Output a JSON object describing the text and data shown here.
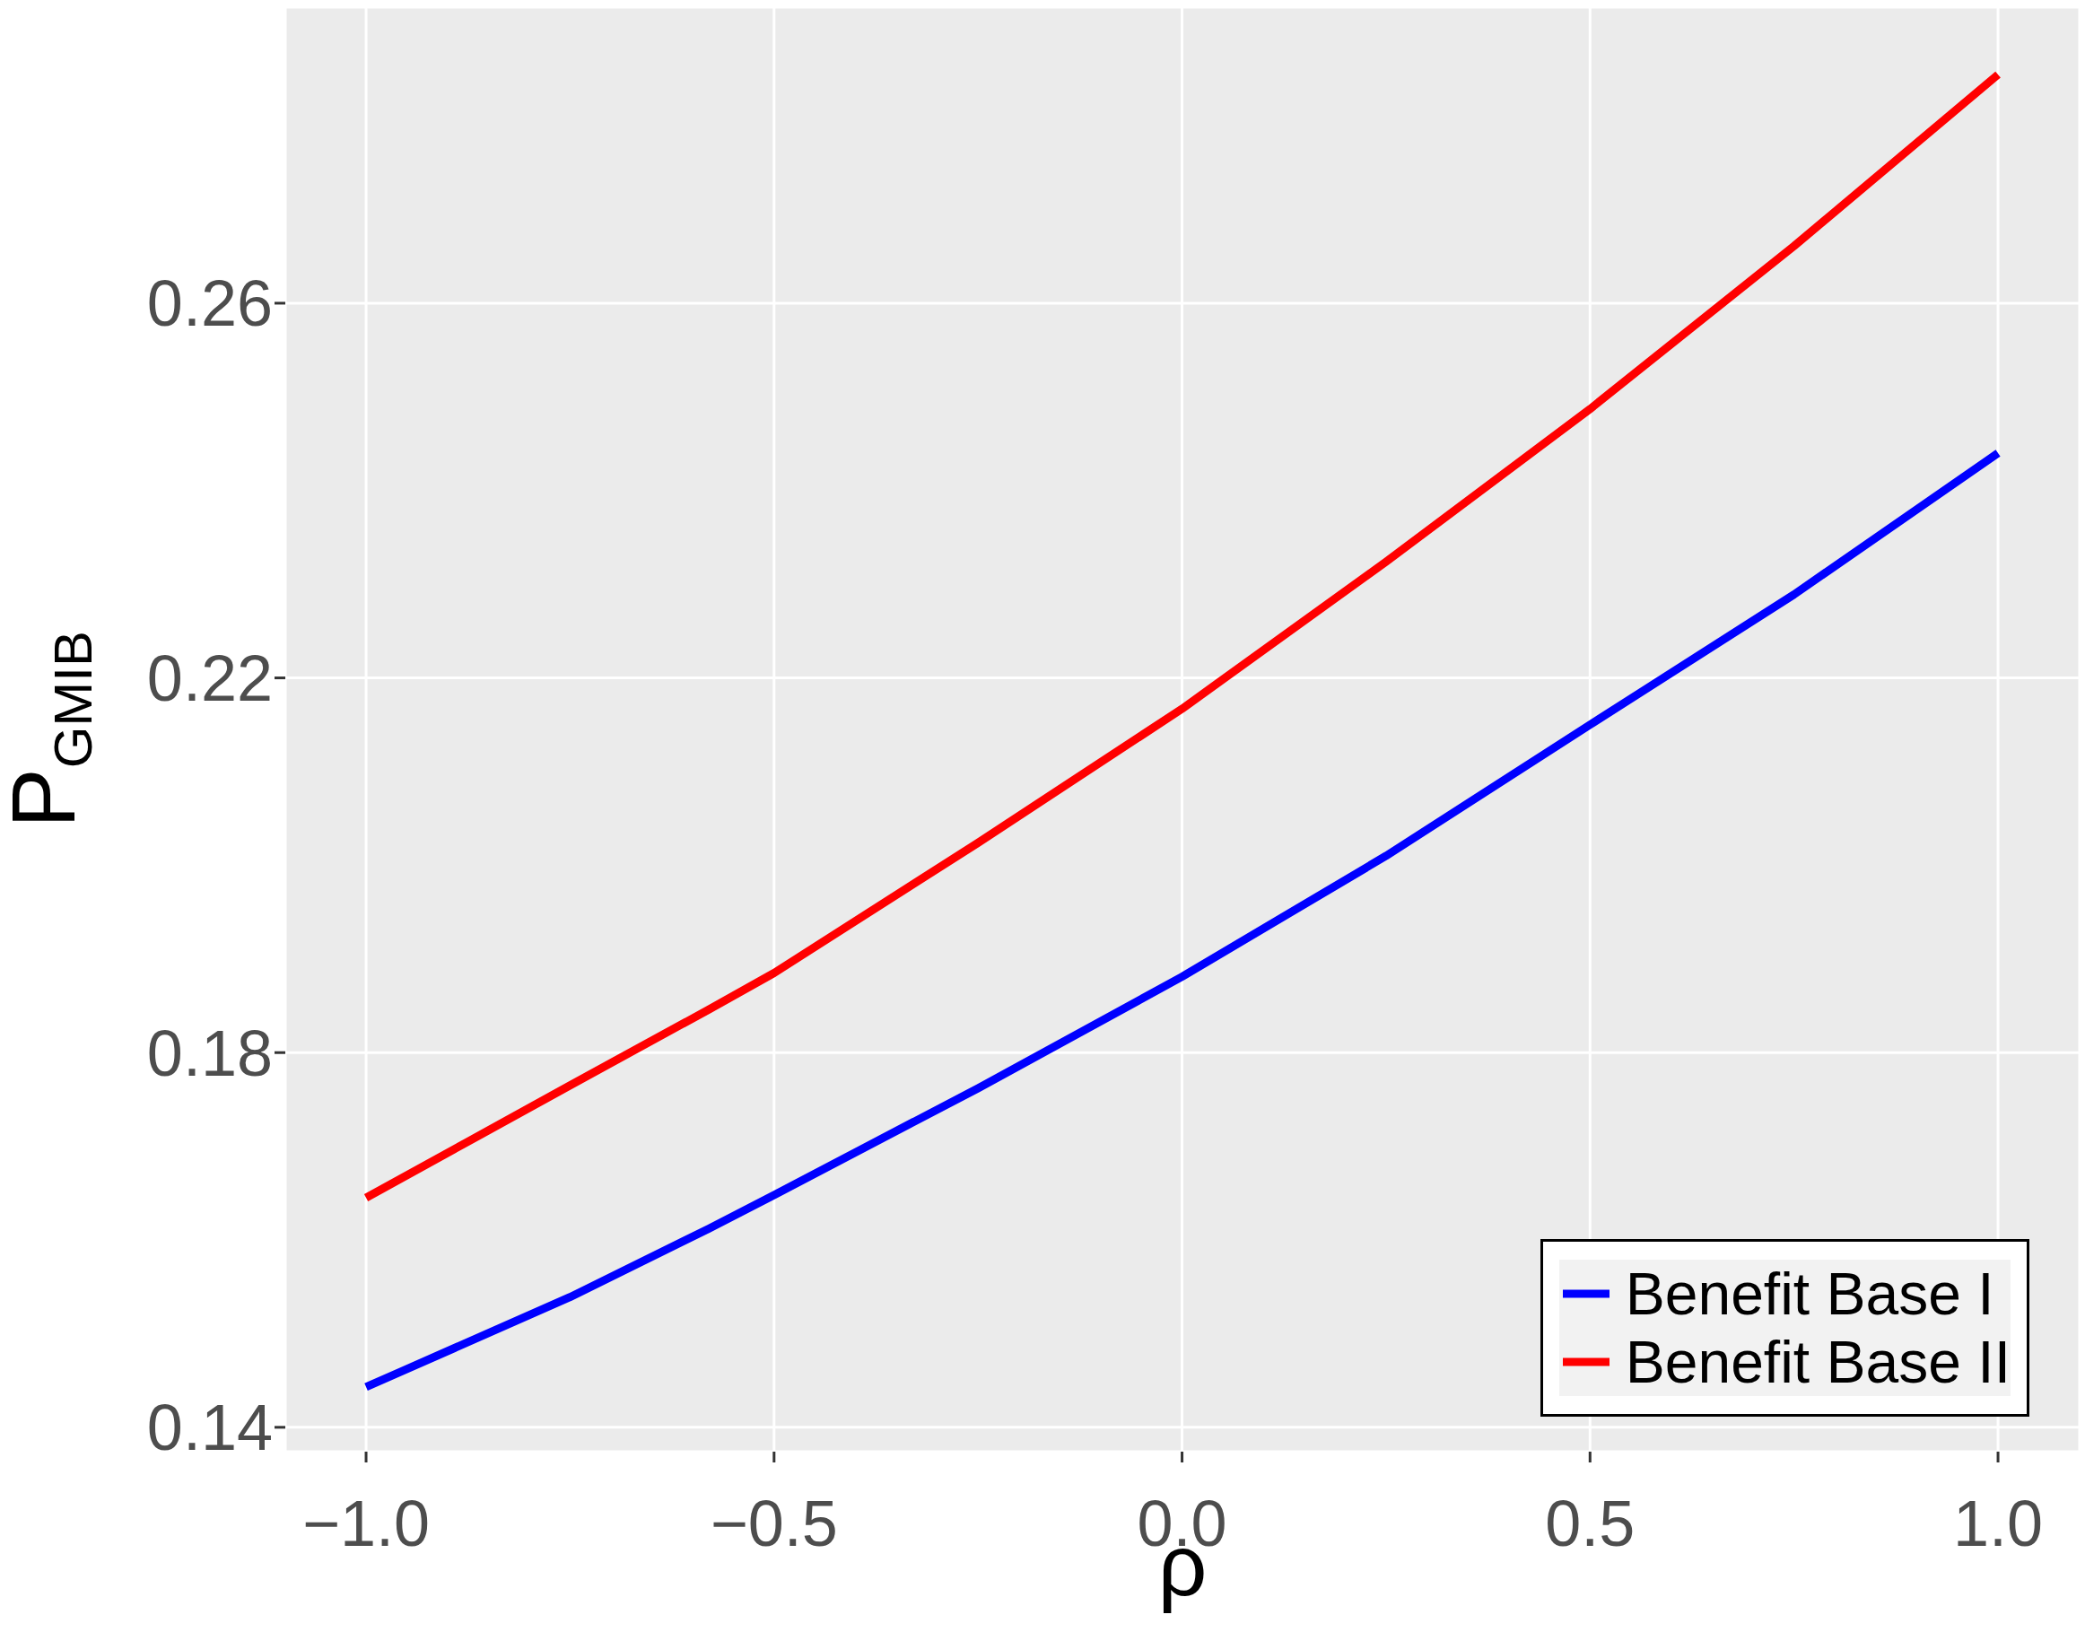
{
  "chart_data": {
    "type": "line",
    "xlabel": "ρ",
    "ylabel": "P$_{GMIB}$",
    "x": [
      -1,
      -0.75,
      -0.58,
      -0.5,
      -0.25,
      0,
      0.25,
      0.5,
      0.75,
      1
    ],
    "series": [
      {
        "name": "Benefit Base I",
        "color": "#0000ff",
        "values": [
          0.1443,
          0.1539,
          0.1612,
          0.1648,
          0.1762,
          0.1881,
          0.201,
          0.215,
          0.2289,
          0.244
        ]
      },
      {
        "name": "Benefit Base II",
        "color": "#ff0000",
        "values": [
          0.1645,
          0.1765,
          0.1846,
          0.1885,
          0.2024,
          0.2167,
          0.2324,
          0.2487,
          0.2661,
          0.2844
        ]
      }
    ],
    "xlim": [
      -1.099,
      1.1
    ],
    "ylim": [
      0.1374,
      0.2916
    ],
    "xticks": [
      {
        "value": -1,
        "label": "−1.0"
      },
      {
        "value": -0.5,
        "label": "−0.5"
      },
      {
        "value": 0,
        "label": "0.0"
      },
      {
        "value": 0.5,
        "label": "0.5"
      },
      {
        "value": 1,
        "label": "1.0"
      }
    ],
    "yticks": [
      0.14,
      0.18,
      0.22,
      0.26
    ],
    "grid": true,
    "legend": "bottom right",
    "marker": "none",
    "line_style": "solid"
  }
}
